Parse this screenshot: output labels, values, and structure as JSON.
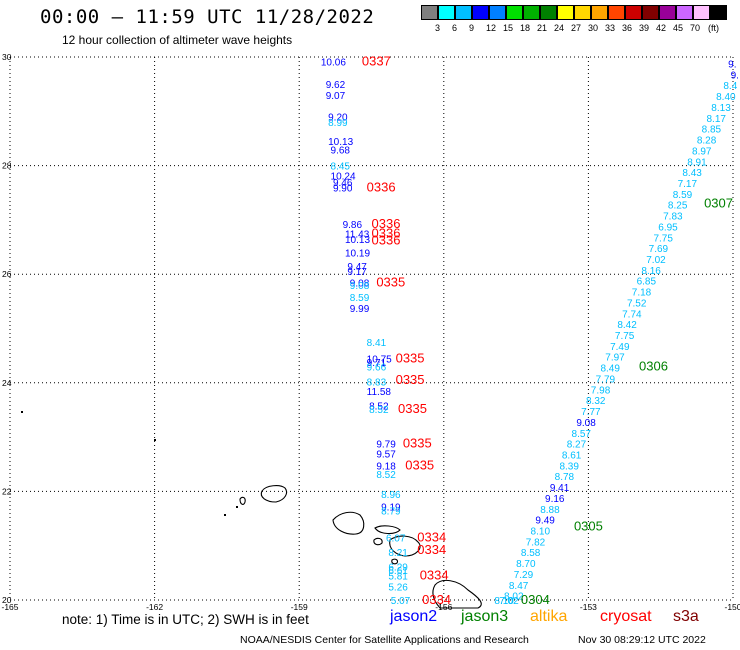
{
  "header": {
    "title": "00:00 – 11:59 UTC 11/28/2022",
    "subtitle": "12 hour collection of altimeter wave heights"
  },
  "colorbar": {
    "unit": "(ft)",
    "colors": [
      "#7f7f7f",
      "#00ffff",
      "#00bfff",
      "#0000ff",
      "#0080ff",
      "#00e000",
      "#00b000",
      "#008000",
      "#ffff00",
      "#ffd700",
      "#ffa500",
      "#ff4500",
      "#cc0000",
      "#800000",
      "#990099",
      "#cc66ff",
      "#ffc0ff",
      "#000000"
    ],
    "labels": [
      "3",
      "6",
      "9",
      "12",
      "15",
      "18",
      "21",
      "24",
      "27",
      "30",
      "33",
      "36",
      "39",
      "42",
      "45",
      "70"
    ]
  },
  "map": {
    "lon_range": [
      -165,
      -150
    ],
    "lat_range": [
      20,
      30
    ],
    "lon_ticks": [
      "-165",
      "-162",
      "-159",
      "-156",
      "-153",
      "-150"
    ],
    "lat_ticks": [
      "30",
      "28",
      "26",
      "24",
      "22",
      "20"
    ]
  },
  "track_west": {
    "labels": [
      {
        "t": "10.06",
        "c": "#0000ff",
        "lon": -158.55,
        "lat": 29.92
      },
      {
        "t": "9.62",
        "c": "#0000ff",
        "lon": -158.45,
        "lat": 29.5
      },
      {
        "t": "9.07",
        "c": "#0000ff",
        "lon": -158.45,
        "lat": 29.3
      },
      {
        "t": "9.20",
        "c": "#0000ff",
        "lon": -158.4,
        "lat": 28.9
      },
      {
        "t": "8.99",
        "c": "#00bfff",
        "lon": -158.4,
        "lat": 28.8
      },
      {
        "t": "10.13",
        "c": "#0000ff",
        "lon": -158.4,
        "lat": 28.45
      },
      {
        "t": "9.68",
        "c": "#0000ff",
        "lon": -158.35,
        "lat": 28.3
      },
      {
        "t": "8.45",
        "c": "#00bfff",
        "lon": -158.35,
        "lat": 28.0
      },
      {
        "t": "10.24",
        "c": "#0000ff",
        "lon": -158.35,
        "lat": 27.82
      },
      {
        "t": "9.46",
        "c": "#0000ff",
        "lon": -158.3,
        "lat": 27.7
      },
      {
        "t": "9.90",
        "c": "#0000ff",
        "lon": -158.3,
        "lat": 27.6
      },
      {
        "t": "9.86",
        "c": "#0000ff",
        "lon": -158.1,
        "lat": 26.92
      },
      {
        "t": "11.43",
        "c": "#0000ff",
        "lon": -158.05,
        "lat": 26.75
      },
      {
        "t": "10.13",
        "c": "#0000ff",
        "lon": -158.05,
        "lat": 26.65
      },
      {
        "t": "10.19",
        "c": "#0000ff",
        "lon": -158.05,
        "lat": 26.4
      },
      {
        "t": "9.47",
        "c": "#0000ff",
        "lon": -158.0,
        "lat": 26.15
      },
      {
        "t": "9.17",
        "c": "#0000ff",
        "lon": -158.0,
        "lat": 26.06
      },
      {
        "t": "9.08",
        "c": "#0000ff",
        "lon": -157.95,
        "lat": 25.85
      },
      {
        "t": "9.08",
        "c": "#00bfff",
        "lon": -157.95,
        "lat": 25.8
      },
      {
        "t": "8.59",
        "c": "#00bfff",
        "lon": -157.95,
        "lat": 25.58
      },
      {
        "t": "9.99",
        "c": "#0000ff",
        "lon": -157.95,
        "lat": 25.38
      },
      {
        "t": "8.41",
        "c": "#00bfff",
        "lon": -157.6,
        "lat": 24.75
      },
      {
        "t": "10.75",
        "c": "#0000ff",
        "lon": -157.6,
        "lat": 24.45
      },
      {
        "t": "9.71",
        "c": "#0000ff",
        "lon": -157.6,
        "lat": 24.38
      },
      {
        "t": "9.66",
        "c": "#00bfff",
        "lon": -157.6,
        "lat": 24.3
      },
      {
        "t": "8.83",
        "c": "#00bfff",
        "lon": -157.6,
        "lat": 24.02
      },
      {
        "t": "11.58",
        "c": "#0000ff",
        "lon": -157.6,
        "lat": 23.85
      },
      {
        "t": "8.52",
        "c": "#0000ff",
        "lon": -157.55,
        "lat": 23.58
      },
      {
        "t": "8.52",
        "c": "#00bfff",
        "lon": -157.55,
        "lat": 23.52
      },
      {
        "t": "9.79",
        "c": "#0000ff",
        "lon": -157.4,
        "lat": 22.88
      },
      {
        "t": "9.57",
        "c": "#0000ff",
        "lon": -157.4,
        "lat": 22.7
      },
      {
        "t": "9.18",
        "c": "#0000ff",
        "lon": -157.4,
        "lat": 22.48
      },
      {
        "t": "8.52",
        "c": "#00bfff",
        "lon": -157.4,
        "lat": 22.32
      },
      {
        "t": "8.96",
        "c": "#00bfff",
        "lon": -157.3,
        "lat": 21.95
      },
      {
        "t": "9.19",
        "c": "#0000ff",
        "lon": -157.3,
        "lat": 21.72
      },
      {
        "t": "8.79",
        "c": "#00bfff",
        "lon": -157.3,
        "lat": 21.65
      },
      {
        "t": "6.07",
        "c": "#00bfff",
        "lon": -157.2,
        "lat": 21.15
      },
      {
        "t": "8.21",
        "c": "#00bfff",
        "lon": -157.15,
        "lat": 20.88
      },
      {
        "t": "6.29",
        "c": "#00bfff",
        "lon": -157.15,
        "lat": 20.62
      },
      {
        "t": "6.61",
        "c": "#00bfff",
        "lon": -157.15,
        "lat": 20.55
      },
      {
        "t": "5.81",
        "c": "#00bfff",
        "lon": -157.15,
        "lat": 20.45
      },
      {
        "t": "5.26",
        "c": "#00bfff",
        "lon": -157.15,
        "lat": 20.25
      },
      {
        "t": "5.07",
        "c": "#00bfff",
        "lon": -157.1,
        "lat": 19.96
      }
    ],
    "times": [
      {
        "t": "0337",
        "c": "#ff0000",
        "lon": -157.7,
        "lat": 29.92
      },
      {
        "t": "0336",
        "c": "#ff0000",
        "lon": -157.6,
        "lat": 27.6
      },
      {
        "t": "0336",
        "c": "#ff0000",
        "lon": -157.5,
        "lat": 26.92
      },
      {
        "t": "0336",
        "c": "#ff0000",
        "lon": -157.5,
        "lat": 26.75
      },
      {
        "t": "0336",
        "c": "#ff0000",
        "lon": -157.5,
        "lat": 26.62
      },
      {
        "t": "0335",
        "c": "#ff0000",
        "lon": -157.4,
        "lat": 25.85
      },
      {
        "t": "0335",
        "c": "#ff0000",
        "lon": -157.0,
        "lat": 24.45
      },
      {
        "t": "0335",
        "c": "#ff0000",
        "lon": -157.0,
        "lat": 24.05
      },
      {
        "t": "0335",
        "c": "#ff0000",
        "lon": -156.95,
        "lat": 23.52
      },
      {
        "t": "0335",
        "c": "#ff0000",
        "lon": -156.85,
        "lat": 22.88
      },
      {
        "t": "0335",
        "c": "#ff0000",
        "lon": -156.8,
        "lat": 22.48
      },
      {
        "t": "0334",
        "c": "#ff0000",
        "lon": -156.55,
        "lat": 21.15
      },
      {
        "t": "0334",
        "c": "#ff0000",
        "lon": -156.55,
        "lat": 20.92
      },
      {
        "t": "0334",
        "c": "#ff0000",
        "lon": -156.5,
        "lat": 20.45
      },
      {
        "t": "0334",
        "c": "#ff0000",
        "lon": -156.45,
        "lat": 19.96
      }
    ]
  },
  "track_east": {
    "labels": [
      {
        "t": "9.",
        "c": "#0000ff",
        "lon": -150.1,
        "lat": 29.88
      },
      {
        "t": "9.",
        "c": "#0000ff",
        "lon": -150.05,
        "lat": 29.68
      },
      {
        "t": "8.4",
        "c": "#00bfff",
        "lon": -150.2,
        "lat": 29.48
      },
      {
        "t": "8.40",
        "c": "#00bfff",
        "lon": -150.35,
        "lat": 29.28
      },
      {
        "t": "8.13",
        "c": "#00bfff",
        "lon": -150.45,
        "lat": 29.08
      },
      {
        "t": "8.17",
        "c": "#00bfff",
        "lon": -150.55,
        "lat": 28.88
      },
      {
        "t": "8.85",
        "c": "#00bfff",
        "lon": -150.65,
        "lat": 28.68
      },
      {
        "t": "8.28",
        "c": "#00bfff",
        "lon": -150.75,
        "lat": 28.48
      },
      {
        "t": "8.97",
        "c": "#00bfff",
        "lon": -150.85,
        "lat": 28.28
      },
      {
        "t": "8.91",
        "c": "#00bfff",
        "lon": -150.95,
        "lat": 28.08
      },
      {
        "t": "8.43",
        "c": "#00bfff",
        "lon": -151.05,
        "lat": 27.88
      },
      {
        "t": "7.17",
        "c": "#00bfff",
        "lon": -151.15,
        "lat": 27.68
      },
      {
        "t": "8.59",
        "c": "#00bfff",
        "lon": -151.25,
        "lat": 27.48
      },
      {
        "t": "8.25",
        "c": "#00bfff",
        "lon": -151.35,
        "lat": 27.28
      },
      {
        "t": "7.83",
        "c": "#00bfff",
        "lon": -151.45,
        "lat": 27.08
      },
      {
        "t": "6.95",
        "c": "#00bfff",
        "lon": -151.55,
        "lat": 26.88
      },
      {
        "t": "7.75",
        "c": "#00bfff",
        "lon": -151.65,
        "lat": 26.68
      },
      {
        "t": "7.69",
        "c": "#00bfff",
        "lon": -151.75,
        "lat": 26.48
      },
      {
        "t": "7.02",
        "c": "#00bfff",
        "lon": -151.8,
        "lat": 26.28
      },
      {
        "t": "8.16",
        "c": "#00bfff",
        "lon": -151.9,
        "lat": 26.08
      },
      {
        "t": "6.85",
        "c": "#00bfff",
        "lon": -152.0,
        "lat": 25.88
      },
      {
        "t": "7.18",
        "c": "#00bfff",
        "lon": -152.1,
        "lat": 25.68
      },
      {
        "t": "7.52",
        "c": "#00bfff",
        "lon": -152.2,
        "lat": 25.48
      },
      {
        "t": "7.74",
        "c": "#00bfff",
        "lon": -152.3,
        "lat": 25.28
      },
      {
        "t": "8.42",
        "c": "#00bfff",
        "lon": -152.4,
        "lat": 25.08
      },
      {
        "t": "7.75",
        "c": "#00bfff",
        "lon": -152.45,
        "lat": 24.88
      },
      {
        "t": "7.49",
        "c": "#00bfff",
        "lon": -152.55,
        "lat": 24.68
      },
      {
        "t": "7.97",
        "c": "#00bfff",
        "lon": -152.65,
        "lat": 24.48
      },
      {
        "t": "8.49",
        "c": "#00bfff",
        "lon": -152.75,
        "lat": 24.28
      },
      {
        "t": "7.79",
        "c": "#00bfff",
        "lon": -152.85,
        "lat": 24.08
      },
      {
        "t": "7.98",
        "c": "#00bfff",
        "lon": -152.95,
        "lat": 23.88
      },
      {
        "t": "8.32",
        "c": "#00bfff",
        "lon": -153.05,
        "lat": 23.68
      },
      {
        "t": "7.77",
        "c": "#00bfff",
        "lon": -153.15,
        "lat": 23.48
      },
      {
        "t": "9.08",
        "c": "#0000ff",
        "lon": -153.25,
        "lat": 23.28
      },
      {
        "t": "8.57",
        "c": "#00bfff",
        "lon": -153.35,
        "lat": 23.08
      },
      {
        "t": "8.27",
        "c": "#00bfff",
        "lon": -153.45,
        "lat": 22.88
      },
      {
        "t": "8.61",
        "c": "#00bfff",
        "lon": -153.55,
        "lat": 22.68
      },
      {
        "t": "8.39",
        "c": "#00bfff",
        "lon": -153.6,
        "lat": 22.48
      },
      {
        "t": "8.78",
        "c": "#00bfff",
        "lon": -153.7,
        "lat": 22.28
      },
      {
        "t": "9.41",
        "c": "#0000ff",
        "lon": -153.8,
        "lat": 22.08
      },
      {
        "t": "9.16",
        "c": "#0000ff",
        "lon": -153.9,
        "lat": 21.88
      },
      {
        "t": "8.88",
        "c": "#00bfff",
        "lon": -154.0,
        "lat": 21.68
      },
      {
        "t": "9.49",
        "c": "#0000ff",
        "lon": -154.1,
        "lat": 21.48
      },
      {
        "t": "8.10",
        "c": "#00bfff",
        "lon": -154.2,
        "lat": 21.28
      },
      {
        "t": "7.82",
        "c": "#00bfff",
        "lon": -154.3,
        "lat": 21.08
      },
      {
        "t": "8.58",
        "c": "#00bfff",
        "lon": -154.4,
        "lat": 20.88
      },
      {
        "t": "8.70",
        "c": "#00bfff",
        "lon": -154.5,
        "lat": 20.68
      },
      {
        "t": "7.29",
        "c": "#00bfff",
        "lon": -154.55,
        "lat": 20.48
      },
      {
        "t": "8.47",
        "c": "#00bfff",
        "lon": -154.65,
        "lat": 20.28
      },
      {
        "t": "8.02",
        "c": "#00bfff",
        "lon": -154.75,
        "lat": 20.08
      },
      {
        "t": "7.02",
        "c": "#00bfff",
        "lon": -154.85,
        "lat": 19.88
      },
      {
        "t": "8.10",
        "c": "#00bfff",
        "lon": -154.95,
        "lat": 19.68
      }
    ],
    "times": [
      {
        "t": "0307",
        "c": "#008000",
        "lon": -150.6,
        "lat": 27.3
      },
      {
        "t": "0306",
        "c": "#008000",
        "lon": -151.95,
        "lat": 24.3
      },
      {
        "t": "0305",
        "c": "#008000",
        "lon": -153.3,
        "lat": 21.35
      },
      {
        "t": "0304",
        "c": "#008000",
        "lon": -154.4,
        "lat": 19.95
      }
    ]
  },
  "legend": {
    "note": "note: 1) Time is in UTC; 2) SWH is in feet",
    "satellites": [
      {
        "name": "jason2",
        "color": "#0000ff"
      },
      {
        "name": "jason3",
        "color": "#008000"
      },
      {
        "name": "altika",
        "color": "#ffa500"
      },
      {
        "name": "cryosat",
        "color": "#ff0000"
      },
      {
        "name": "s3a",
        "color": "#800000"
      }
    ]
  },
  "footer": {
    "credit": "NOAA/NESDIS Center for Satellite Applications and Research",
    "generated": "Nov 30 08:29:12 UTC 2022"
  }
}
